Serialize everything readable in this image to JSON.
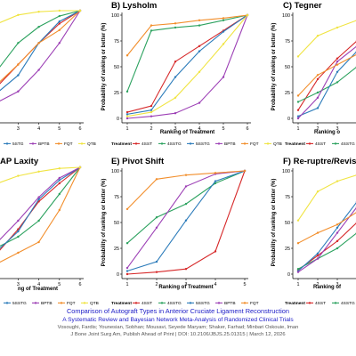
{
  "colors": {
    "4SST": "#d62728",
    "4SSTG": "#2ca25f",
    "5SSTG": "#2b7bba",
    "BPTB": "#9c3fb5",
    "FQT": "#f28e2b",
    "QTB": "#f0e442"
  },
  "chart_data": [
    {
      "type": "line",
      "title": "",
      "xlabel": "",
      "ylabel": "",
      "x": [
        1,
        2,
        3,
        4,
        5,
        6
      ],
      "xlim": [
        1,
        6
      ],
      "ylim": [
        0,
        100
      ],
      "xticks": [
        "3",
        "4",
        "5",
        "6"
      ],
      "yticks": [],
      "legend": {
        "title": "",
        "position": "bottom",
        "labels": [
          "5STG",
          "BPTB",
          "FQT",
          "QTB"
        ],
        "keys": [
          "5SSTG",
          "BPTB",
          "FQT",
          "QTB"
        ]
      },
      "series": [
        {
          "key": "4SST",
          "values": [
            10,
            30,
            50,
            70,
            88,
            100
          ]
        },
        {
          "key": "4SSTG",
          "values": [
            25,
            45,
            70,
            85,
            95,
            100
          ]
        },
        {
          "key": "5SSTG",
          "values": [
            12,
            24,
            40,
            70,
            90,
            100
          ]
        },
        {
          "key": "BPTB",
          "values": [
            5,
            15,
            25,
            45,
            70,
            100
          ]
        },
        {
          "key": "FQT",
          "values": [
            15,
            32,
            50,
            70,
            82,
            100
          ]
        },
        {
          "key": "QTB",
          "values": [
            70,
            88,
            96,
            99,
            100,
            100
          ]
        }
      ]
    },
    {
      "type": "line",
      "title": "B) Lysholm",
      "xlabel": "Ranking of Treatment",
      "ylabel": "Probability of ranking or better (%)",
      "x": [
        1,
        2,
        3,
        4,
        5,
        6
      ],
      "xlim": [
        1,
        6
      ],
      "ylim": [
        0,
        100
      ],
      "xticks": [
        "1",
        "2",
        "3",
        "4",
        "5",
        "6"
      ],
      "yticks": [
        "0",
        "25",
        "50",
        "75",
        "100"
      ],
      "legend": {
        "title": "Treatment",
        "position": "bottom",
        "labels": [
          "4SST",
          "4SSTG",
          "5SSTG",
          "BPTB",
          "FQT",
          "QTB"
        ],
        "keys": [
          "4SST",
          "4SSTG",
          "5SSTG",
          "BPTB",
          "FQT",
          "QTB"
        ]
      },
      "series": [
        {
          "key": "4SST",
          "values": [
            6,
            12,
            55,
            70,
            85,
            100
          ]
        },
        {
          "key": "4SSTG",
          "values": [
            26,
            85,
            88,
            90,
            95,
            100
          ]
        },
        {
          "key": "5SSTG",
          "values": [
            4,
            8,
            40,
            65,
            84,
            100
          ]
        },
        {
          "key": "BPTB",
          "values": [
            0,
            2,
            5,
            15,
            40,
            100
          ]
        },
        {
          "key": "FQT",
          "values": [
            61,
            90,
            92,
            95,
            97,
            100
          ]
        },
        {
          "key": "QTB",
          "values": [
            2,
            6,
            20,
            45,
            72,
            100
          ]
        }
      ]
    },
    {
      "type": "line",
      "title": "C) Tegner",
      "xlabel": "Ranking o",
      "ylabel": "Probability of ranking or better (%)",
      "x": [
        1,
        2,
        3,
        4,
        5,
        6
      ],
      "xlim": [
        1,
        6
      ],
      "ylim": [
        0,
        100
      ],
      "xticks": [
        "1",
        "2",
        "3"
      ],
      "yticks": [
        "0",
        "25",
        "50",
        "75",
        "100"
      ],
      "legend": {
        "title": "Treatment",
        "position": "bottom",
        "labels": [
          "4SST",
          "4SSTG",
          "5"
        ],
        "keys": [
          "4SST",
          "4SSTG",
          "5SSTG"
        ]
      },
      "series": [
        {
          "key": "4SST",
          "values": [
            8,
            38,
            58,
            75,
            90,
            100
          ]
        },
        {
          "key": "4SSTG",
          "values": [
            16,
            25,
            35,
            50,
            72,
            100
          ]
        },
        {
          "key": "5SSTG",
          "values": [
            2,
            10,
            45,
            65,
            85,
            100
          ]
        },
        {
          "key": "BPTB",
          "values": [
            0,
            20,
            55,
            70,
            85,
            100
          ]
        },
        {
          "key": "FQT",
          "values": [
            22,
            42,
            52,
            62,
            80,
            100
          ]
        },
        {
          "key": "QTB",
          "values": [
            60,
            80,
            88,
            95,
            98,
            100
          ]
        }
      ]
    },
    {
      "type": "line",
      "title": "AP Laxity",
      "xlabel": "ng of Treatment",
      "ylabel": "",
      "x": [
        1,
        2,
        3,
        4,
        5,
        6
      ],
      "xlim": [
        1,
        6
      ],
      "ylim": [
        0,
        100
      ],
      "xticks": [
        "3",
        "4",
        "5",
        "6"
      ],
      "yticks": [],
      "legend": {
        "title": "",
        "position": "bottom",
        "labels": [
          "5SSTG",
          "BPTB",
          "FQT",
          "QTB"
        ],
        "keys": [
          "5SSTG",
          "BPTB",
          "FQT",
          "QTB"
        ]
      },
      "series": [
        {
          "key": "4SST",
          "values": [
            5,
            20,
            42,
            68,
            85,
            100
          ]
        },
        {
          "key": "4SSTG",
          "values": [
            10,
            25,
            35,
            50,
            75,
            100
          ]
        },
        {
          "key": "5SSTG",
          "values": [
            8,
            22,
            40,
            70,
            88,
            100
          ]
        },
        {
          "key": "BPTB",
          "values": [
            15,
            30,
            50,
            72,
            90,
            100
          ]
        },
        {
          "key": "FQT",
          "values": [
            3,
            10,
            20,
            30,
            60,
            100
          ]
        },
        {
          "key": "QTB",
          "values": [
            70,
            85,
            92,
            96,
            99,
            100
          ]
        }
      ]
    },
    {
      "type": "line",
      "title": "E) Pivot Shift",
      "xlabel": "Ranking of Treatment",
      "ylabel": "Probability of ranking or better (%)",
      "x": [
        1,
        2,
        3,
        4,
        5
      ],
      "xlim": [
        1,
        5
      ],
      "ylim": [
        0,
        100
      ],
      "xticks": [
        "1",
        "2",
        "3",
        "4",
        "5"
      ],
      "yticks": [
        "0",
        "25",
        "50",
        "75",
        "100"
      ],
      "legend": {
        "title": "Treatment",
        "position": "bottom",
        "labels": [
          "4SST",
          "4SSTG",
          "5SSTG",
          "BPTB",
          "FQT"
        ],
        "keys": [
          "4SST",
          "4SSTG",
          "5SSTG",
          "BPTB",
          "FQT"
        ]
      },
      "series": [
        {
          "key": "4SST",
          "values": [
            0,
            2,
            5,
            22,
            100
          ]
        },
        {
          "key": "4SSTG",
          "values": [
            30,
            55,
            68,
            88,
            100
          ]
        },
        {
          "key": "5SSTG",
          "values": [
            3,
            12,
            52,
            90,
            100
          ]
        },
        {
          "key": "BPTB",
          "values": [
            6,
            45,
            85,
            97,
            100
          ]
        },
        {
          "key": "FQT",
          "values": [
            63,
            92,
            96,
            98,
            100
          ]
        }
      ]
    },
    {
      "type": "line",
      "title": "F) Re-ruptre/Revision",
      "xlabel": "Ranking of",
      "ylabel": "Probability of ranking or better (%)",
      "x": [
        1,
        2,
        3,
        4,
        5,
        6
      ],
      "xlim": [
        1,
        6
      ],
      "ylim": [
        0,
        100
      ],
      "xticks": [
        "1",
        "2",
        "3"
      ],
      "yticks": [
        "0",
        "25",
        "50",
        "75",
        "100"
      ],
      "legend": {
        "title": "Treatment",
        "position": "bottom",
        "labels": [
          "4SST",
          "4SSTG"
        ],
        "keys": [
          "4SST",
          "4SSTG"
        ]
      },
      "series": [
        {
          "key": "4SST",
          "values": [
            4,
            18,
            32,
            50,
            75,
            100
          ]
        },
        {
          "key": "4SSTG",
          "values": [
            5,
            15,
            25,
            40,
            70,
            100
          ]
        },
        {
          "key": "5SSTG",
          "values": [
            3,
            20,
            45,
            70,
            88,
            100
          ]
        },
        {
          "key": "BPTB",
          "values": [
            2,
            15,
            40,
            65,
            85,
            100
          ]
        },
        {
          "key": "FQT",
          "values": [
            30,
            40,
            48,
            60,
            80,
            100
          ]
        },
        {
          "key": "QTB",
          "values": [
            52,
            80,
            90,
            96,
            99,
            100
          ]
        }
      ]
    }
  ],
  "footer": {
    "title": "Comparison of Autograft Types in Anterior Cruciate Ligament Reconstruction",
    "subtitle": "A Systematic Review and Bayesian Network Meta-Analysis of Randomized Clinical Trials",
    "authors": "Vosoughi, Fardis; Younesian, Sobhan; Mousavi, Seyede Maryam; Shaker, Farhad; Minbari Oskouie, Iman",
    "citation": "J Bone Joint Surg Am, Publish Ahead of Print | DOI: 10.2106/JBJS.25.01315 | March 12, 2026"
  }
}
